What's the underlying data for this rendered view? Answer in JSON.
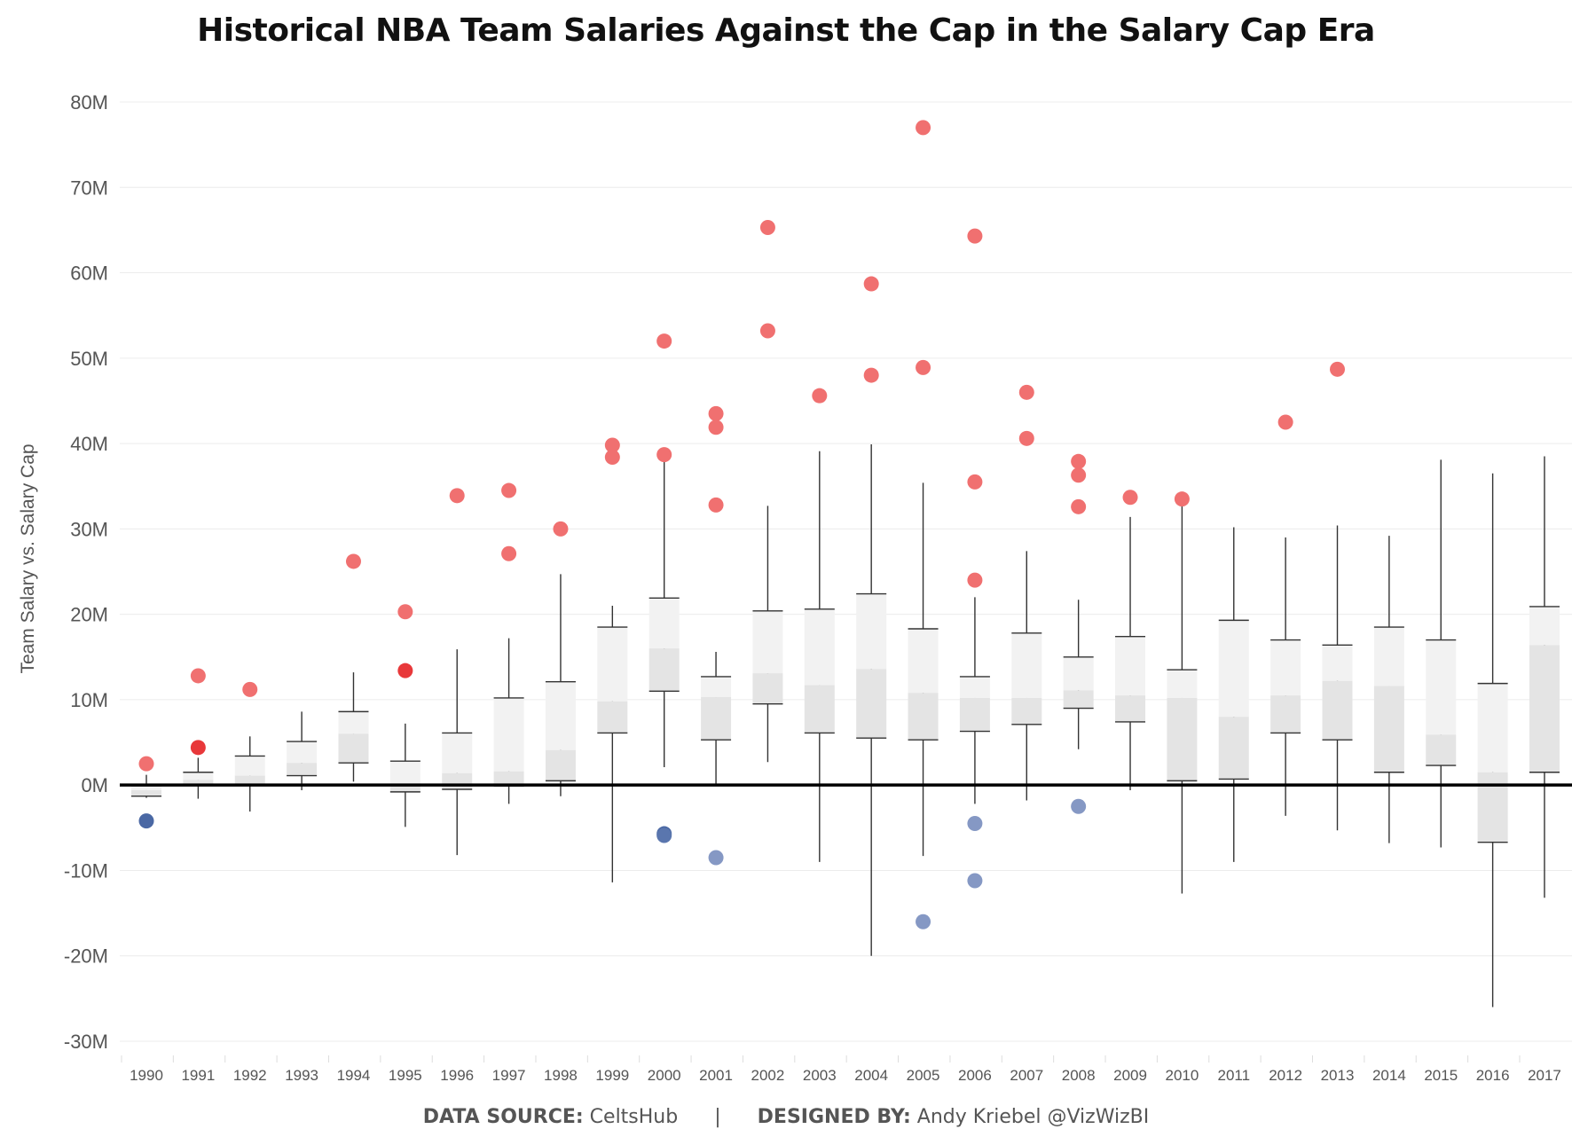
{
  "chart_data": {
    "type": "box",
    "title": "Historical NBA Team Salaries Against the Cap in the Salary Cap Era",
    "ylabel": "Team Salary vs. Salary Cap",
    "xlabel": "",
    "ylim": [
      -30000000,
      80000000
    ],
    "yticks": [
      80000000,
      70000000,
      60000000,
      50000000,
      40000000,
      30000000,
      20000000,
      10000000,
      0,
      -10000000,
      -20000000,
      -30000000
    ],
    "ytick_labels": [
      "80M",
      "70M",
      "60M",
      "50M",
      "40M",
      "30M",
      "20M",
      "10M",
      "0M",
      "-10M",
      "-20M",
      "-30M"
    ],
    "grid": true,
    "zero_line": true,
    "categories": [
      "1990",
      "1991",
      "1992",
      "1993",
      "1994",
      "1995",
      "1996",
      "1997",
      "1998",
      "1999",
      "2000",
      "2001",
      "2002",
      "2003",
      "2004",
      "2005",
      "2006",
      "2007",
      "2008",
      "2009",
      "2010",
      "2011",
      "2012",
      "2013",
      "2014",
      "2015",
      "2016",
      "2017"
    ],
    "boxes": [
      {
        "year": "1990",
        "wlo": -1.5,
        "q1": -1.3,
        "median": -0.6,
        "q3": 0.0,
        "whi": 1.2
      },
      {
        "year": "1991",
        "wlo": -1.6,
        "q1": 0.1,
        "median": 0.6,
        "q3": 1.5,
        "whi": 3.2
      },
      {
        "year": "1992",
        "wlo": -3.1,
        "q1": 0.0,
        "median": 1.1,
        "q3": 3.4,
        "whi": 5.7
      },
      {
        "year": "1993",
        "wlo": -0.6,
        "q1": 1.1,
        "median": 2.6,
        "q3": 5.1,
        "whi": 8.6
      },
      {
        "year": "1994",
        "wlo": 0.4,
        "q1": 2.6,
        "median": 6.0,
        "q3": 8.6,
        "whi": 13.2
      },
      {
        "year": "1995",
        "wlo": -4.9,
        "q1": -0.8,
        "median": 0.0,
        "q3": 2.8,
        "whi": 7.2
      },
      {
        "year": "1996",
        "wlo": -8.2,
        "q1": -0.5,
        "median": 1.4,
        "q3": 6.1,
        "whi": 15.9
      },
      {
        "year": "1997",
        "wlo": -2.2,
        "q1": -0.1,
        "median": 1.6,
        "q3": 10.2,
        "whi": 17.2
      },
      {
        "year": "1998",
        "wlo": -1.3,
        "q1": 0.5,
        "median": 4.1,
        "q3": 12.1,
        "whi": 24.7
      },
      {
        "year": "1999",
        "wlo": -11.4,
        "q1": 6.1,
        "median": 9.8,
        "q3": 18.5,
        "whi": 21.0
      },
      {
        "year": "2000",
        "wlo": 2.1,
        "q1": 11.0,
        "median": 16.0,
        "q3": 21.9,
        "whi": 38.6
      },
      {
        "year": "2001",
        "wlo": 0.1,
        "q1": 5.3,
        "median": 10.3,
        "q3": 12.7,
        "whi": 15.6
      },
      {
        "year": "2002",
        "wlo": 2.7,
        "q1": 9.5,
        "median": 13.1,
        "q3": 20.4,
        "whi": 32.7
      },
      {
        "year": "2003",
        "wlo": -9.0,
        "q1": 6.1,
        "median": 11.7,
        "q3": 20.6,
        "whi": 39.1
      },
      {
        "year": "2004",
        "wlo": -20.0,
        "q1": 5.5,
        "median": 13.6,
        "q3": 22.4,
        "whi": 39.9
      },
      {
        "year": "2005",
        "wlo": -8.3,
        "q1": 5.3,
        "median": 10.8,
        "q3": 18.3,
        "whi": 35.4
      },
      {
        "year": "2006",
        "wlo": -2.2,
        "q1": 6.3,
        "median": 10.2,
        "q3": 12.7,
        "whi": 22.0
      },
      {
        "year": "2007",
        "wlo": -1.8,
        "q1": 7.1,
        "median": 10.2,
        "q3": 17.8,
        "whi": 27.4
      },
      {
        "year": "2008",
        "wlo": 4.2,
        "q1": 9.0,
        "median": 11.1,
        "q3": 15.0,
        "whi": 21.7
      },
      {
        "year": "2009",
        "wlo": -0.6,
        "q1": 7.4,
        "median": 10.5,
        "q3": 17.4,
        "whi": 31.4
      },
      {
        "year": "2010",
        "wlo": -12.7,
        "q1": 0.5,
        "median": 10.2,
        "q3": 13.5,
        "whi": 33.2
      },
      {
        "year": "2011",
        "wlo": -9.0,
        "q1": 0.7,
        "median": 8.0,
        "q3": 19.3,
        "whi": 30.2
      },
      {
        "year": "2012",
        "wlo": -3.6,
        "q1": 6.1,
        "median": 10.5,
        "q3": 17.0,
        "whi": 29.0
      },
      {
        "year": "2013",
        "wlo": -5.3,
        "q1": 5.3,
        "median": 12.2,
        "q3": 16.4,
        "whi": 30.4
      },
      {
        "year": "2014",
        "wlo": -6.8,
        "q1": 1.5,
        "median": 11.6,
        "q3": 18.5,
        "whi": 29.2
      },
      {
        "year": "2015",
        "wlo": -7.3,
        "q1": 2.3,
        "median": 5.9,
        "q3": 17.0,
        "whi": 38.1
      },
      {
        "year": "2016",
        "wlo": -26.0,
        "q1": -6.7,
        "median": 1.5,
        "q3": 11.9,
        "whi": 36.5
      },
      {
        "year": "2017",
        "wlo": -13.2,
        "q1": 1.5,
        "median": 16.4,
        "q3": 20.9,
        "whi": 38.5
      }
    ],
    "outliers": [
      {
        "year": "1990",
        "value": 2.5,
        "color": "#f07070"
      },
      {
        "year": "1990",
        "value": -4.2,
        "color": "#4a68a4"
      },
      {
        "year": "1991",
        "value": 12.8,
        "color": "#f07070"
      },
      {
        "year": "1991",
        "value": 4.4,
        "color": "#e8383a"
      },
      {
        "year": "1992",
        "value": 11.2,
        "color": "#f07070"
      },
      {
        "year": "1994",
        "value": 26.2,
        "color": "#f07070"
      },
      {
        "year": "1995",
        "value": 20.3,
        "color": "#f07070"
      },
      {
        "year": "1995",
        "value": 13.4,
        "color": "#e8383a"
      },
      {
        "year": "1996",
        "value": 33.9,
        "color": "#f07070"
      },
      {
        "year": "1997",
        "value": 34.5,
        "color": "#f07070"
      },
      {
        "year": "1997",
        "value": 27.1,
        "color": "#f07070"
      },
      {
        "year": "1998",
        "value": 30.0,
        "color": "#f07070"
      },
      {
        "year": "1999",
        "value": 39.8,
        "color": "#f07070"
      },
      {
        "year": "1999",
        "value": 38.4,
        "color": "#f07070"
      },
      {
        "year": "2000",
        "value": 52.0,
        "color": "#f07070"
      },
      {
        "year": "2000",
        "value": 38.7,
        "color": "#f07070"
      },
      {
        "year": "2000",
        "value": -5.7,
        "color": "#4a68a4"
      },
      {
        "year": "2000",
        "value": -5.9,
        "color": "#5a76ae"
      },
      {
        "year": "2001",
        "value": 43.5,
        "color": "#f07070"
      },
      {
        "year": "2001",
        "value": 41.9,
        "color": "#f07070"
      },
      {
        "year": "2001",
        "value": 32.8,
        "color": "#f07070"
      },
      {
        "year": "2001",
        "value": -8.5,
        "color": "#8598c4"
      },
      {
        "year": "2002",
        "value": 65.3,
        "color": "#f07070"
      },
      {
        "year": "2002",
        "value": 53.2,
        "color": "#f07070"
      },
      {
        "year": "2003",
        "value": 45.6,
        "color": "#f07070"
      },
      {
        "year": "2004",
        "value": 58.7,
        "color": "#f07070"
      },
      {
        "year": "2004",
        "value": 48.0,
        "color": "#f07070"
      },
      {
        "year": "2005",
        "value": 77.0,
        "color": "#f07070"
      },
      {
        "year": "2005",
        "value": 48.9,
        "color": "#f07070"
      },
      {
        "year": "2005",
        "value": -16.0,
        "color": "#8598c4"
      },
      {
        "year": "2006",
        "value": 64.3,
        "color": "#f07070"
      },
      {
        "year": "2006",
        "value": 35.5,
        "color": "#f07070"
      },
      {
        "year": "2006",
        "value": 24.0,
        "color": "#f07070"
      },
      {
        "year": "2006",
        "value": -4.5,
        "color": "#8598c4"
      },
      {
        "year": "2006",
        "value": -11.2,
        "color": "#8598c4"
      },
      {
        "year": "2007",
        "value": 46.0,
        "color": "#f07070"
      },
      {
        "year": "2007",
        "value": 40.6,
        "color": "#f07070"
      },
      {
        "year": "2008",
        "value": 37.9,
        "color": "#f07070"
      },
      {
        "year": "2008",
        "value": 36.3,
        "color": "#f07070"
      },
      {
        "year": "2008",
        "value": 32.6,
        "color": "#f07070"
      },
      {
        "year": "2008",
        "value": -2.5,
        "color": "#8598c4"
      },
      {
        "year": "2009",
        "value": 33.7,
        "color": "#f07070"
      },
      {
        "year": "2010",
        "value": 33.5,
        "color": "#f07070"
      },
      {
        "year": "2012",
        "value": 42.5,
        "color": "#f07070"
      },
      {
        "year": "2013",
        "value": 48.7,
        "color": "#f07070"
      }
    ],
    "value_unit": "M"
  },
  "footer": {
    "source_label": "DATA SOURCE:",
    "source_value": "CeltsHub",
    "separator": "|",
    "designer_label": "DESIGNED BY:",
    "designer_value": "Andy Kriebel @VizWizBI"
  },
  "colors": {
    "over_cap": "#f07070",
    "under_cap": "#8598c4",
    "box_upper": "#f2f2f2",
    "box_lower": "#e4e4e4",
    "whisker": "#333333",
    "zero_line": "#000000",
    "grid": "#ececec"
  }
}
